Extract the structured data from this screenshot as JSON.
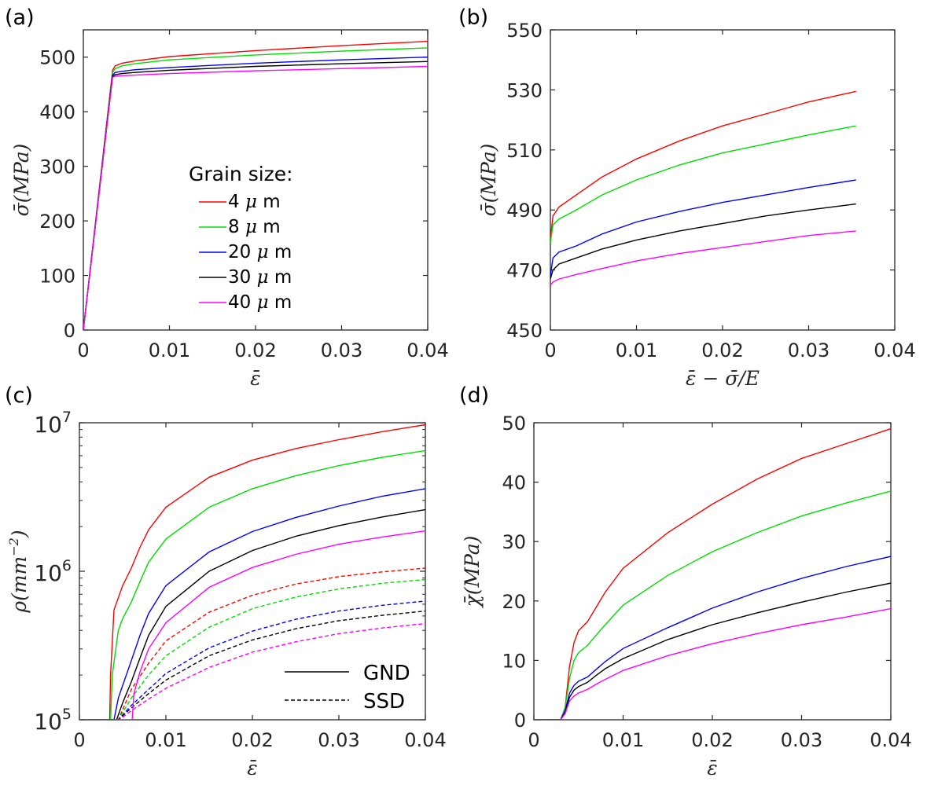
{
  "colors": {
    "grain_4um": "#ff0000",
    "grain_8um": "#00dd00",
    "grain_20um": "#0000ff",
    "grain_30um": "#000000",
    "grain_40um": "#ff00ff",
    "axis": "#262626"
  },
  "chart_data": [
    {
      "panel": "(a)",
      "type": "line",
      "xlabel": "ε̄",
      "ylabel": "σ̄(MPa)",
      "xlim": [
        0,
        0.04
      ],
      "ylim": [
        0,
        550
      ],
      "xticks": [
        "0",
        "0.01",
        "0.02",
        "0.03",
        "0.04"
      ],
      "yticks": [
        "0",
        "100",
        "200",
        "300",
        "400",
        "500"
      ],
      "legend": {
        "title": "Grain size:",
        "entries": [
          {
            "series": "4um",
            "size": "4",
            "unit": "m",
            "mu": "μ"
          },
          {
            "series": "8um",
            "size": "8",
            "unit": "m",
            "mu": "μ"
          },
          {
            "series": "20um",
            "size": "20",
            "unit": "m",
            "mu": "μ"
          },
          {
            "series": "30um",
            "size": "30",
            "unit": "m",
            "mu": "μ"
          },
          {
            "series": "40um",
            "size": "40",
            "unit": "m",
            "mu": "μ"
          }
        ]
      },
      "series": [
        {
          "name": "4um",
          "x": [
            0,
            0.0034,
            0.0037,
            0.0045,
            0.006,
            0.01,
            0.02,
            0.03,
            0.04
          ],
          "y": [
            0,
            476,
            484,
            489,
            493,
            501,
            512,
            521,
            529
          ]
        },
        {
          "name": "8um",
          "x": [
            0,
            0.0034,
            0.0037,
            0.0045,
            0.006,
            0.01,
            0.02,
            0.03,
            0.04
          ],
          "y": [
            0,
            472,
            479,
            484,
            488,
            495,
            504,
            511,
            517
          ]
        },
        {
          "name": "20um",
          "x": [
            0,
            0.0034,
            0.0037,
            0.0045,
            0.006,
            0.01,
            0.02,
            0.03,
            0.04
          ],
          "y": [
            0,
            467,
            472,
            474,
            477,
            481,
            489,
            495,
            500
          ]
        },
        {
          "name": "30um",
          "x": [
            0,
            0.0034,
            0.0037,
            0.0045,
            0.006,
            0.01,
            0.02,
            0.03,
            0.04
          ],
          "y": [
            0,
            465,
            468,
            470,
            472,
            476,
            483,
            488,
            492
          ]
        },
        {
          "name": "40um",
          "x": [
            0,
            0.0034,
            0.0037,
            0.0045,
            0.006,
            0.01,
            0.02,
            0.03,
            0.04
          ],
          "y": [
            0,
            463,
            465,
            466,
            467,
            470,
            475,
            479,
            483
          ]
        }
      ]
    },
    {
      "panel": "(b)",
      "type": "line",
      "xlabel": "ε̄ − σ̄/E",
      "ylabel": "σ̄(MPa)",
      "xlim": [
        0,
        0.04
      ],
      "ylim": [
        450,
        550
      ],
      "xticks": [
        "0",
        "0.01",
        "0.02",
        "0.03",
        "0.04"
      ],
      "yticks": [
        "450",
        "470",
        "490",
        "510",
        "530",
        "550"
      ],
      "series": [
        {
          "name": "4um",
          "x": [
            0,
            0.0003,
            0.001,
            0.003,
            0.006,
            0.01,
            0.015,
            0.02,
            0.025,
            0.03,
            0.0355
          ],
          "y": [
            480,
            488,
            491,
            495,
            501,
            507,
            513,
            518,
            522,
            526,
            529.5
          ]
        },
        {
          "name": "8um",
          "x": [
            0,
            0.0003,
            0.001,
            0.003,
            0.006,
            0.01,
            0.015,
            0.02,
            0.025,
            0.03,
            0.0355
          ],
          "y": [
            479,
            485,
            487,
            490,
            495,
            500,
            505,
            509,
            512,
            515,
            518
          ]
        },
        {
          "name": "20um",
          "x": [
            0,
            0.0003,
            0.001,
            0.003,
            0.006,
            0.01,
            0.015,
            0.02,
            0.025,
            0.03,
            0.0355
          ],
          "y": [
            468,
            474,
            476,
            478,
            482,
            486,
            489.5,
            492.5,
            495,
            497.5,
            500
          ]
        },
        {
          "name": "30um",
          "x": [
            0,
            0.0003,
            0.001,
            0.003,
            0.006,
            0.01,
            0.015,
            0.02,
            0.025,
            0.03,
            0.0355
          ],
          "y": [
            467,
            470,
            472,
            474,
            477,
            480,
            483,
            485.5,
            488,
            490,
            492
          ]
        },
        {
          "name": "40um",
          "x": [
            0,
            0.0003,
            0.001,
            0.003,
            0.006,
            0.01,
            0.015,
            0.02,
            0.025,
            0.03,
            0.0355
          ],
          "y": [
            465,
            466,
            467,
            468.5,
            470.5,
            473,
            475.5,
            477.5,
            479.5,
            481.5,
            483
          ]
        }
      ]
    },
    {
      "panel": "(c)",
      "type": "line",
      "xlabel": "ε̄",
      "ylabel": "ρ(mm",
      "ylabel_sup": "−2",
      "ylabel_end": ")",
      "yscale": "log",
      "xlim": [
        0,
        0.04
      ],
      "ylim": [
        100000,
        10000000
      ],
      "xticks": [
        "0",
        "0.01",
        "0.02",
        "0.03",
        "0.04"
      ],
      "yticks": [
        {
          "base": "10",
          "exp": "5"
        },
        {
          "base": "10",
          "exp": "6"
        },
        {
          "base": "10",
          "exp": "7"
        }
      ],
      "legend": {
        "entries": [
          {
            "label": "GND",
            "style": "solid"
          },
          {
            "label": "SSD",
            "style": "dashed"
          }
        ]
      },
      "series": [
        {
          "name": "4um GND",
          "style": "solid",
          "x": [
            0,
            0.0035,
            0.0036,
            0.004,
            0.005,
            0.006,
            0.007,
            0.008,
            0.01,
            0.015,
            0.02,
            0.025,
            0.03,
            0.035,
            0.04
          ],
          "y": [
            100000,
            100000,
            200000,
            550000,
            800000,
            1050000,
            1450000,
            1900000,
            2700000,
            4300000,
            5600000,
            6700000,
            7700000,
            8700000,
            9700000
          ]
        },
        {
          "name": "8um GND",
          "style": "solid",
          "x": [
            0,
            0.0036,
            0.0038,
            0.0045,
            0.005,
            0.006,
            0.007,
            0.008,
            0.01,
            0.015,
            0.02,
            0.025,
            0.03,
            0.035,
            0.04
          ],
          "y": [
            100000,
            100000,
            200000,
            400000,
            480000,
            620000,
            850000,
            1150000,
            1650000,
            2700000,
            3600000,
            4400000,
            5150000,
            5850000,
            6500000
          ]
        },
        {
          "name": "20um GND",
          "style": "solid",
          "x": [
            0,
            0.004,
            0.0045,
            0.005,
            0.006,
            0.007,
            0.008,
            0.01,
            0.015,
            0.02,
            0.025,
            0.03,
            0.035,
            0.04
          ],
          "y": [
            100000,
            100000,
            140000,
            170000,
            250000,
            370000,
            520000,
            800000,
            1350000,
            1850000,
            2300000,
            2750000,
            3200000,
            3600000
          ]
        },
        {
          "name": "30um GND",
          "style": "solid",
          "x": [
            0,
            0.0043,
            0.005,
            0.006,
            0.007,
            0.008,
            0.01,
            0.015,
            0.02,
            0.025,
            0.03,
            0.035,
            0.04
          ],
          "y": [
            100000,
            100000,
            130000,
            180000,
            260000,
            370000,
            580000,
            1000000,
            1380000,
            1720000,
            2030000,
            2320000,
            2600000
          ]
        },
        {
          "name": "40um GND",
          "style": "solid",
          "x": [
            0,
            0.0061,
            0.0063,
            0.007,
            0.008,
            0.01,
            0.015,
            0.02,
            0.025,
            0.03,
            0.035,
            0.04
          ],
          "y": [
            100000,
            100000,
            150000,
            210000,
            300000,
            450000,
            780000,
            1060000,
            1300000,
            1520000,
            1700000,
            1870000
          ]
        },
        {
          "name": "4um SSD",
          "style": "dashed",
          "x": [
            0,
            0.0045,
            0.006,
            0.008,
            0.01,
            0.015,
            0.02,
            0.025,
            0.03,
            0.035,
            0.04
          ],
          "y": [
            100000,
            100000,
            160000,
            240000,
            340000,
            530000,
            690000,
            820000,
            920000,
            990000,
            1050000
          ]
        },
        {
          "name": "8um SSD",
          "style": "dashed",
          "x": [
            0,
            0.0045,
            0.006,
            0.008,
            0.01,
            0.015,
            0.02,
            0.025,
            0.03,
            0.035,
            0.04
          ],
          "y": [
            100000,
            100000,
            140000,
            200000,
            270000,
            420000,
            560000,
            670000,
            760000,
            830000,
            880000
          ]
        },
        {
          "name": "20um SSD",
          "style": "dashed",
          "x": [
            0,
            0.0045,
            0.006,
            0.008,
            0.01,
            0.015,
            0.02,
            0.025,
            0.03,
            0.035,
            0.04
          ],
          "y": [
            100000,
            100000,
            125000,
            160000,
            205000,
            305000,
            395000,
            475000,
            540000,
            590000,
            630000
          ]
        },
        {
          "name": "30um SSD",
          "style": "dashed",
          "x": [
            0,
            0.0045,
            0.006,
            0.008,
            0.01,
            0.015,
            0.02,
            0.025,
            0.03,
            0.035,
            0.04
          ],
          "y": [
            100000,
            100000,
            120000,
            150000,
            185000,
            270000,
            345000,
            410000,
            465000,
            505000,
            540000
          ]
        },
        {
          "name": "40um SSD",
          "style": "dashed",
          "x": [
            0,
            0.0046,
            0.006,
            0.008,
            0.01,
            0.015,
            0.02,
            0.025,
            0.03,
            0.035,
            0.04
          ],
          "y": [
            100000,
            100000,
            115000,
            138000,
            163000,
            225000,
            285000,
            335000,
            380000,
            415000,
            445000
          ]
        }
      ]
    },
    {
      "panel": "(d)",
      "type": "line",
      "xlabel": "ε̄",
      "ylabel": "χ̄(MPa)",
      "xlim": [
        0,
        0.04
      ],
      "ylim": [
        0,
        50
      ],
      "xticks": [
        "0",
        "0.01",
        "0.02",
        "0.03",
        "0.04"
      ],
      "yticks": [
        "0",
        "10",
        "20",
        "30",
        "40",
        "50"
      ],
      "series": [
        {
          "name": "4um",
          "x": [
            0,
            0.003,
            0.0035,
            0.004,
            0.0045,
            0.005,
            0.006,
            0.007,
            0.008,
            0.01,
            0.015,
            0.02,
            0.025,
            0.03,
            0.035,
            0.04
          ],
          "y": [
            0,
            0,
            2,
            9,
            13,
            15,
            16.5,
            19,
            21.5,
            25.5,
            31.5,
            36.3,
            40.5,
            44,
            46.5,
            49
          ]
        },
        {
          "name": "8um",
          "x": [
            0,
            0.003,
            0.0035,
            0.004,
            0.0045,
            0.005,
            0.006,
            0.007,
            0.008,
            0.01,
            0.015,
            0.02,
            0.025,
            0.03,
            0.035,
            0.04
          ],
          "y": [
            0,
            0,
            2,
            7,
            10,
            11.3,
            12.5,
            14.3,
            16,
            19.3,
            24.3,
            28.3,
            31.5,
            34.3,
            36.5,
            38.5
          ]
        },
        {
          "name": "20um",
          "x": [
            0,
            0.003,
            0.0035,
            0.004,
            0.0045,
            0.005,
            0.006,
            0.007,
            0.008,
            0.01,
            0.015,
            0.02,
            0.025,
            0.03,
            0.035,
            0.04
          ],
          "y": [
            0,
            0,
            1.5,
            4.5,
            5.8,
            6.5,
            7.2,
            8.5,
            9.8,
            12,
            15.5,
            18.8,
            21.5,
            23.8,
            25.8,
            27.5
          ]
        },
        {
          "name": "30um",
          "x": [
            0,
            0.003,
            0.0035,
            0.004,
            0.0045,
            0.005,
            0.006,
            0.007,
            0.008,
            0.01,
            0.015,
            0.02,
            0.025,
            0.03,
            0.035,
            0.04
          ],
          "y": [
            0,
            0,
            1.2,
            3.8,
            5,
            5.6,
            6.3,
            7.5,
            8.6,
            10.3,
            13.5,
            16,
            18,
            19.8,
            21.5,
            23
          ]
        },
        {
          "name": "40um",
          "x": [
            0,
            0.003,
            0.0035,
            0.004,
            0.0045,
            0.005,
            0.006,
            0.007,
            0.008,
            0.01,
            0.015,
            0.02,
            0.025,
            0.03,
            0.035,
            0.04
          ],
          "y": [
            0,
            0,
            1,
            3.2,
            4,
            4.5,
            5.1,
            6,
            6.8,
            8.3,
            10.8,
            12.8,
            14.5,
            16,
            17.3,
            18.7
          ]
        }
      ]
    }
  ]
}
